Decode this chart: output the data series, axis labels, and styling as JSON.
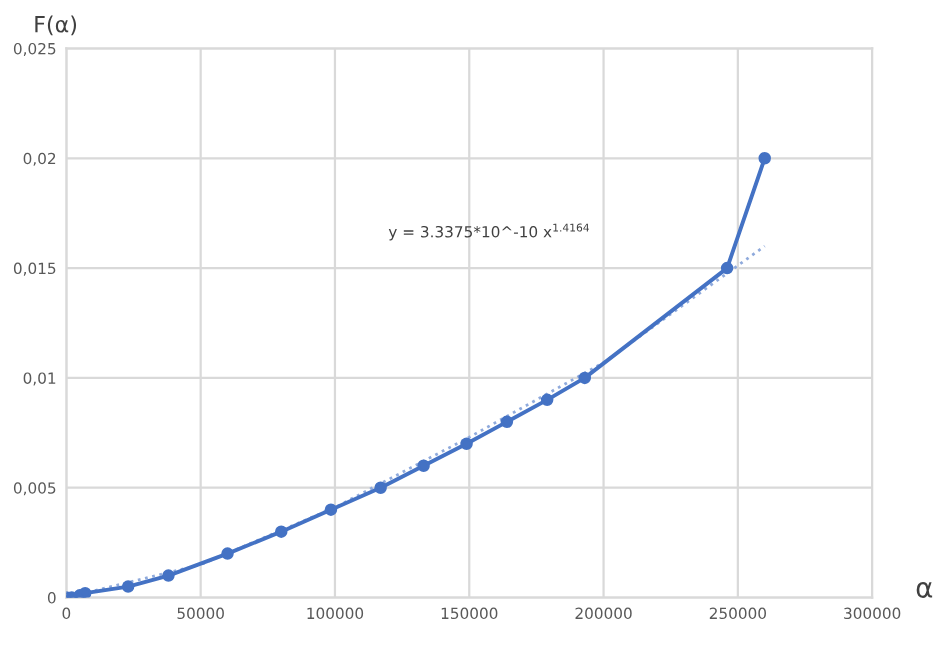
{
  "chart_data": {
    "type": "line",
    "xlabel": "α",
    "ylabel": "F(α)",
    "series": [
      {
        "color": "#4472c4",
        "marker": "circle",
        "line_style": "solid",
        "x": [
          0,
          2000,
          5000,
          7000,
          23000,
          38000,
          60000,
          80000,
          98500,
          117000,
          133000,
          149000,
          164000,
          179000,
          193000,
          246000,
          260000
        ],
        "values": [
          0,
          0,
          0.0001,
          0.0002,
          0.0005,
          0.001,
          0.002,
          0.003,
          0.004,
          0.005,
          0.006,
          0.007,
          0.008,
          0.009,
          0.01,
          0.015,
          0.02
        ]
      },
      {
        "color": "#8faadc",
        "marker": "none",
        "line_style": "dotted",
        "x": [
          0,
          50000,
          100000,
          150000,
          200000,
          260000
        ],
        "values": [
          0,
          0.0015,
          0.0041,
          0.0073,
          0.0107,
          0.016
        ]
      }
    ],
    "annotations": [
      "y = 3.3375*10^-10 x$^{1.4164}$"
    ],
    "xlim": [
      0,
      300000
    ],
    "xticks": [
      0,
      50000,
      100000,
      150000,
      200000,
      250000,
      300000
    ],
    "ylim": [
      0,
      0.025
    ],
    "yticks": [
      {
        "value": 0,
        "label": "0"
      },
      {
        "value": 0.005,
        "label": "0,005"
      },
      {
        "value": 0.01,
        "label": "0,01"
      },
      {
        "value": 0.015,
        "label": "0,015"
      },
      {
        "value": 0.02,
        "label": "0,02"
      },
      {
        "value": 0.025,
        "label": "0,025"
      }
    ],
    "grid": true
  }
}
